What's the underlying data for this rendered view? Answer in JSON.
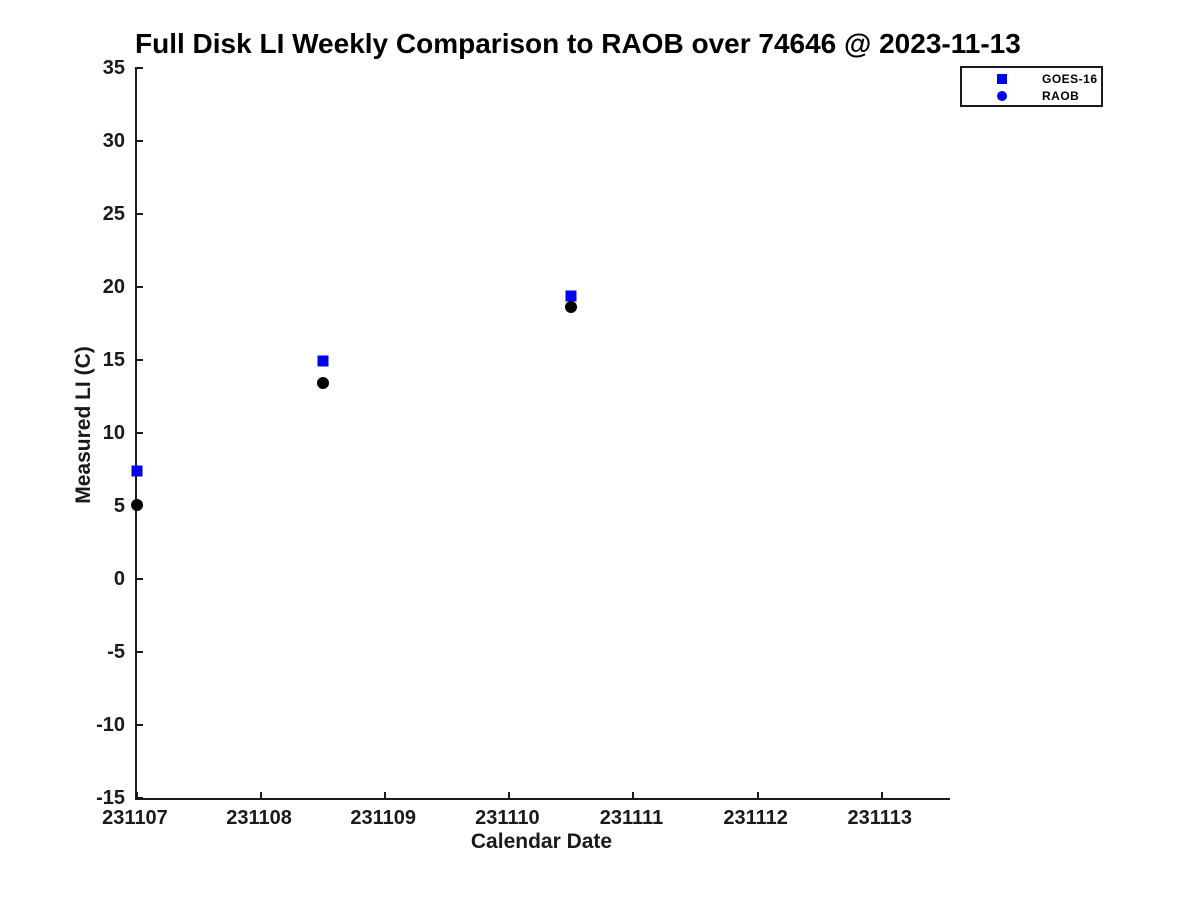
{
  "chart_data": {
    "type": "scatter",
    "title": "Full Disk LI Weekly Comparison to RAOB over 74646 @ 2023-11-13",
    "xlabel": "Calendar Date",
    "ylabel": "Measured LI (C)",
    "xlim": [
      231107,
      231113.55
    ],
    "ylim": [
      -15,
      35
    ],
    "x_ticks": [
      231107,
      231108,
      231109,
      231110,
      231111,
      231112,
      231113
    ],
    "y_ticks": [
      35,
      30,
      25,
      20,
      15,
      10,
      5,
      0,
      -5,
      -10,
      -15
    ],
    "grid": false,
    "legend_position": "top-right",
    "series": [
      {
        "name": "RAOB",
        "marker": "circle",
        "point_color": "#000000",
        "legend_marker_color": "#0000EE",
        "x": [
          231107,
          231108.5,
          231110.5
        ],
        "y": [
          5.1,
          13.4,
          18.6
        ]
      },
      {
        "name": "GOES-16",
        "marker": "square",
        "point_color": "#0000EE",
        "legend_marker_color": "#0000EE",
        "x": [
          231107,
          231108.5,
          231110.5
        ],
        "y": [
          7.4,
          14.9,
          19.4
        ]
      }
    ],
    "colors": {
      "goes16_blue": "#0000EE",
      "raob_point_black": "#000000",
      "axis": "#1a1a1a",
      "background": "#ffffff"
    }
  }
}
